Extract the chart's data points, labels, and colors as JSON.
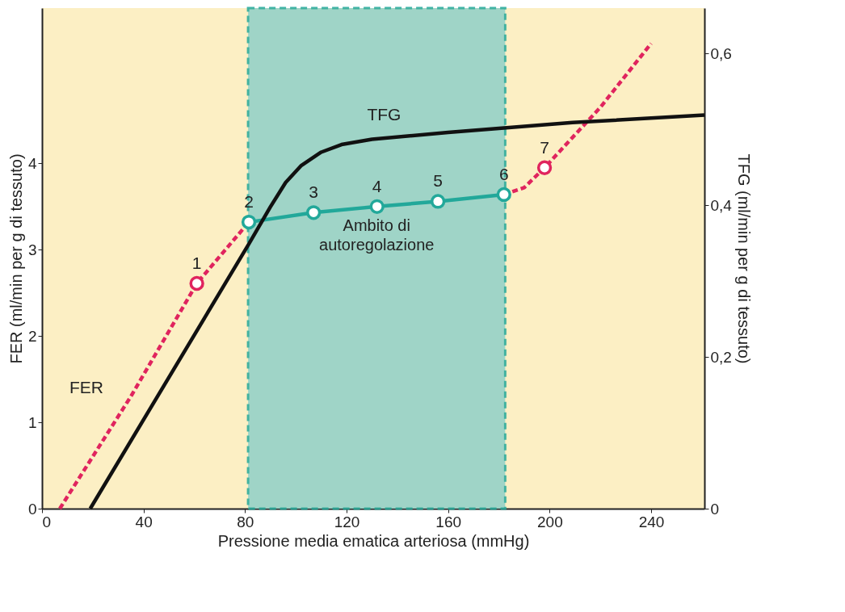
{
  "chart_data": {
    "type": "line",
    "xlabel": "Pressione media ematica arteriosa (mmHg)",
    "ylabel": "FER (ml/min per g di tessuto)",
    "y2label": "TFG (ml/min per g di tessuto)",
    "xlim": [
      0,
      261
    ],
    "xticks": [
      0,
      40,
      80,
      120,
      160,
      200,
      240
    ],
    "ylim": [
      0,
      5.8
    ],
    "yticks": [
      0,
      1,
      2,
      3,
      4
    ],
    "y2lim": [
      0,
      0.66
    ],
    "y2ticks": [
      0,
      {
        "value": 0.2,
        "label": "0,2"
      },
      {
        "value": 0.4,
        "label": "0,4"
      },
      {
        "value": 0.6,
        "label": "0,6"
      }
    ],
    "grid": false,
    "series": [
      {
        "name": "FER",
        "color": "#e0245e",
        "line_style": "dashed",
        "marker": "none",
        "x": [
          7,
          35,
          61,
          81.5,
          130,
          182,
          190,
          198,
          220,
          240
        ],
        "values": [
          0,
          1.3,
          2.61,
          3.32,
          null,
          3.64,
          3.72,
          3.95,
          4.65,
          5.39
        ]
      },
      {
        "color": "#22a89a",
        "line_style": "solid",
        "marker": "circle",
        "x": [
          81.5,
          107,
          132,
          156,
          182
        ],
        "values": [
          3.32,
          3.43,
          3.5,
          3.56,
          3.64
        ]
      },
      {
        "type": "scatter",
        "color": "#e0245e",
        "marker": "circle",
        "x": [
          61,
          198
        ],
        "values": [
          2.61,
          3.95
        ]
      },
      {
        "name": "TFG",
        "color": "#111111",
        "line_style": "solid",
        "marker": "none",
        "axis": "y2",
        "x": [
          19,
          81.5,
          90,
          96,
          102,
          110,
          118,
          130,
          160,
          209,
          261
        ],
        "values": [
          0,
          0.349,
          0.398,
          0.43,
          0.452,
          0.47,
          0.48,
          0.487,
          0.496,
          0.509,
          0.519
        ]
      }
    ],
    "bands": [
      {
        "axis": "x",
        "from": 81.2,
        "to": 182.5,
        "label": "Ambito di autoregolazione",
        "color": "#8fd0c8"
      }
    ],
    "annotations": [
      {
        "text": "1",
        "x": 61,
        "y": 2.61
      },
      {
        "text": "2",
        "x": 81.5,
        "y": 3.32
      },
      {
        "text": "3",
        "x": 107,
        "y": 3.43
      },
      {
        "text": "4",
        "x": 132,
        "y": 3.5
      },
      {
        "text": "5",
        "x": 156,
        "y": 3.56
      },
      {
        "text": "6",
        "x": 182,
        "y": 3.64
      },
      {
        "text": "7",
        "x": 198,
        "y": 3.95
      }
    ]
  }
}
